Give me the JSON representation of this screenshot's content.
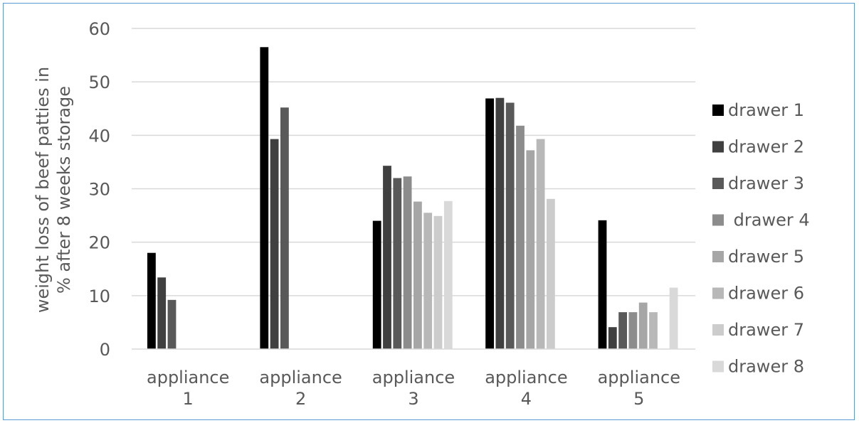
{
  "chart_data": {
    "type": "bar",
    "title": "",
    "xlabel": "",
    "ylabel": "weight loss of beef patties in % after 8 weeks storage",
    "ylabel_lines": [
      "weight loss of beef patties in",
      "% after 8 weeks storage"
    ],
    "ylim": [
      0,
      60
    ],
    "yticks": [
      0,
      10,
      20,
      30,
      40,
      50,
      60
    ],
    "grid": true,
    "legend_position": "right",
    "categories": [
      "appliance 1",
      "appliance 2",
      "appliance 3",
      "appliance 4",
      "appliance 5"
    ],
    "category_lines": [
      [
        "appliance",
        "1"
      ],
      [
        "appliance",
        "2"
      ],
      [
        "appliance",
        "3"
      ],
      [
        "appliance",
        "4"
      ],
      [
        "appliance",
        "5"
      ]
    ],
    "series": [
      {
        "name": "drawer 1",
        "color": "#000000",
        "values": [
          18.0,
          56.5,
          24.0,
          46.9,
          24.1
        ]
      },
      {
        "name": "drawer 2",
        "color": "#404040",
        "values": [
          13.4,
          39.3,
          34.3,
          47.0,
          4.1
        ]
      },
      {
        "name": "drawer 3",
        "color": "#595959",
        "values": [
          9.2,
          45.2,
          32.0,
          46.1,
          6.9
        ]
      },
      {
        "name": " drawer 4",
        "color": "#8c8c8c",
        "values": [
          null,
          null,
          32.3,
          41.8,
          6.9
        ]
      },
      {
        "name": "drawer 5",
        "color": "#a6a6a6",
        "values": [
          null,
          null,
          27.6,
          37.2,
          8.7
        ]
      },
      {
        "name": "drawer 6",
        "color": "#b8b8b8",
        "values": [
          null,
          null,
          25.5,
          39.3,
          6.9
        ]
      },
      {
        "name": "drawer 7",
        "color": "#cccccc",
        "values": [
          null,
          null,
          24.9,
          28.1,
          null
        ]
      },
      {
        "name": "drawer 8",
        "color": "#d9d9d9",
        "values": [
          null,
          null,
          27.7,
          null,
          11.5
        ]
      }
    ]
  }
}
